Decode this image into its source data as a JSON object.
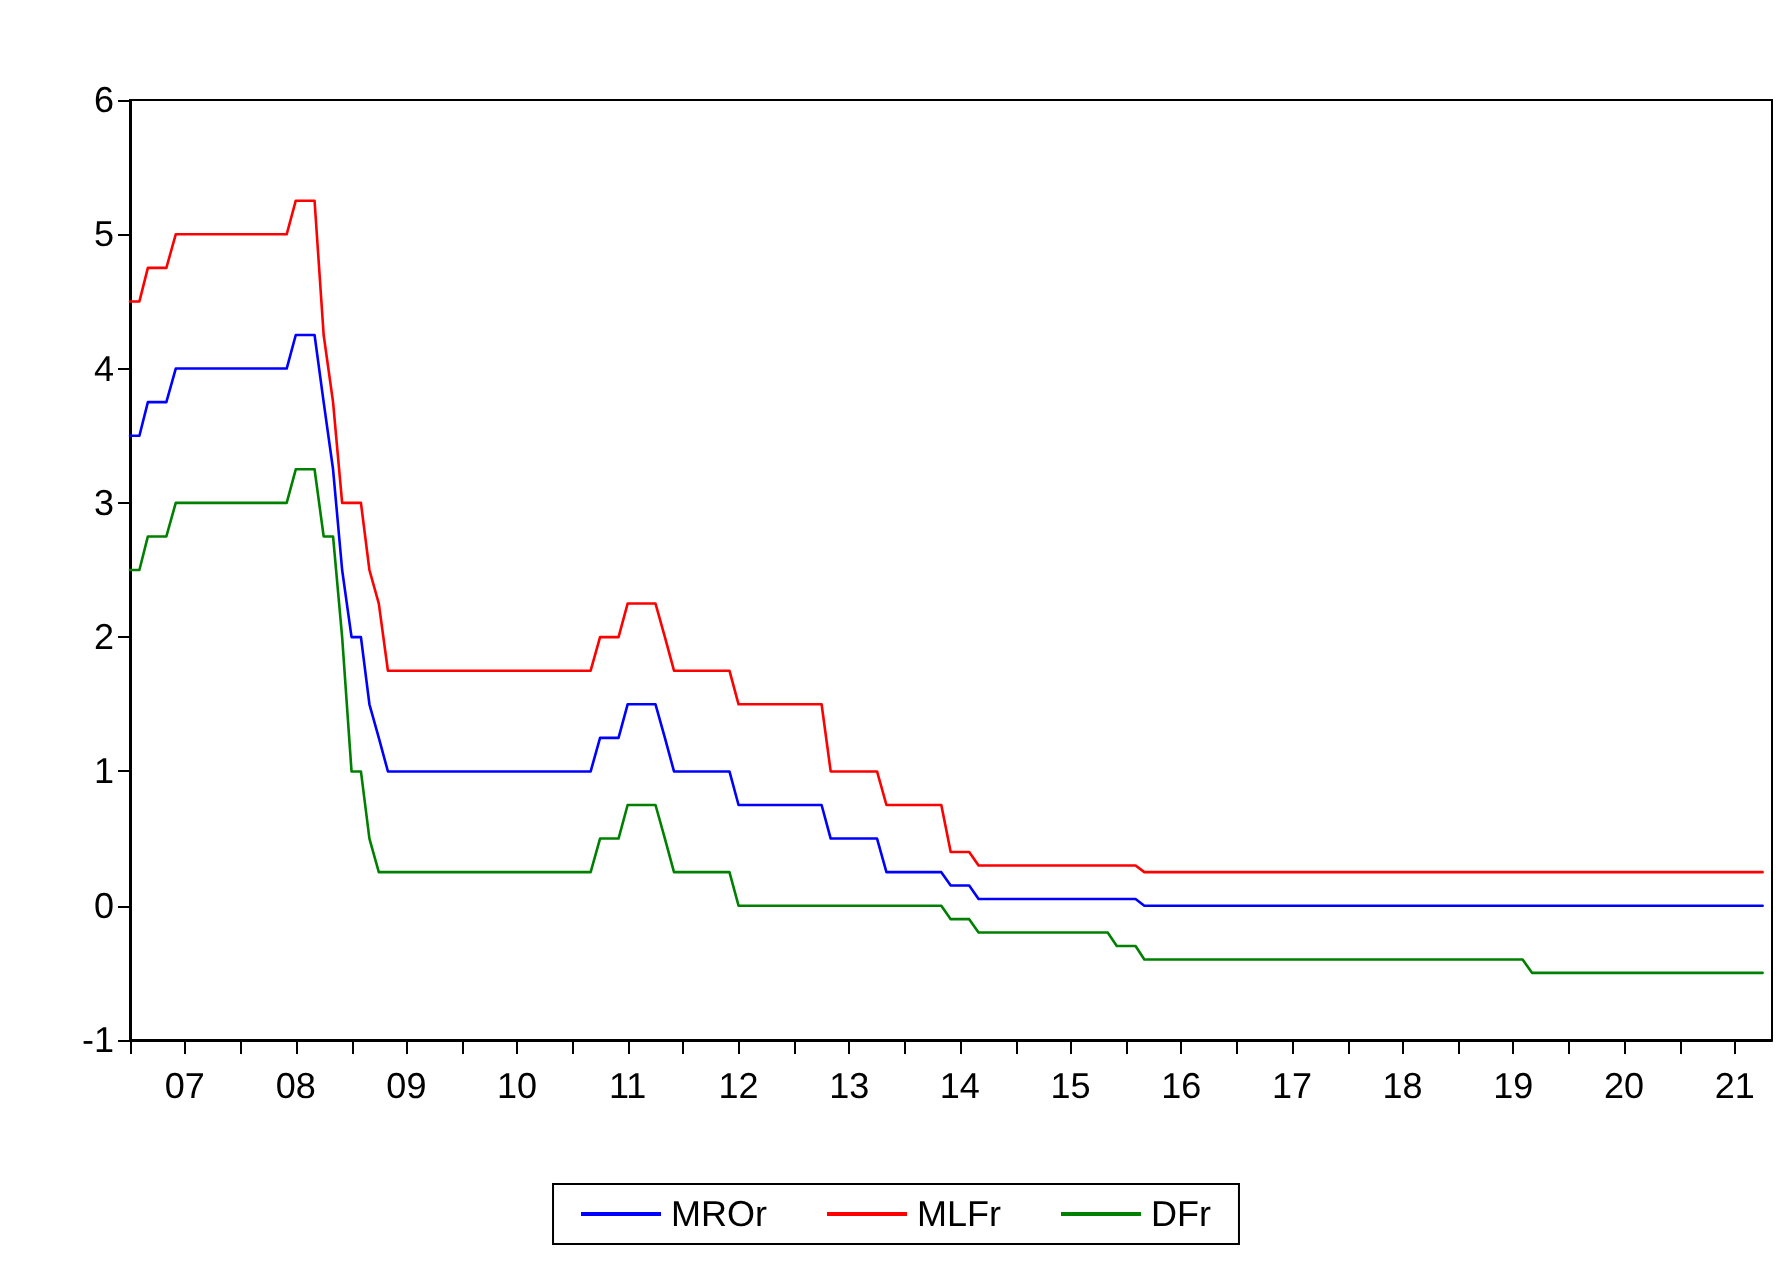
{
  "chart_data": {
    "type": "line",
    "x": [
      "2007-01",
      "2007-02",
      "2007-03",
      "2007-05",
      "2007-06",
      "2008-06",
      "2008-07",
      "2008-09",
      "2008-10",
      "2008-11",
      "2008-12",
      "2009-01",
      "2009-02",
      "2009-03",
      "2009-04",
      "2009-05",
      "2011-03",
      "2011-04",
      "2011-06",
      "2011-07",
      "2011-10",
      "2011-11",
      "2011-12",
      "2012-06",
      "2012-07",
      "2013-04",
      "2013-05",
      "2013-10",
      "2013-11",
      "2014-05",
      "2014-06",
      "2014-08",
      "2014-09",
      "2015-11",
      "2015-12",
      "2016-02",
      "2016-03",
      "2019-08",
      "2019-09",
      "2021-10"
    ],
    "series": [
      {
        "name": "MROr",
        "color": "#0000ff",
        "values": [
          3.5,
          3.5,
          3.75,
          3.75,
          4.0,
          4.0,
          4.25,
          4.25,
          3.75,
          3.25,
          2.5,
          2.0,
          2.0,
          1.5,
          1.25,
          1.0,
          1.0,
          1.25,
          1.25,
          1.5,
          1.5,
          1.25,
          1.0,
          1.0,
          0.75,
          0.75,
          0.5,
          0.5,
          0.25,
          0.25,
          0.15,
          0.15,
          0.05,
          0.05,
          0.05,
          0.05,
          0,
          0,
          0,
          0
        ]
      },
      {
        "name": "MLFr",
        "color": "#ff0000",
        "values": [
          4.5,
          4.5,
          4.75,
          4.75,
          5.0,
          5.0,
          5.25,
          5.25,
          4.25,
          3.75,
          3.0,
          3.0,
          3.0,
          2.5,
          2.25,
          1.75,
          1.75,
          2.0,
          2.0,
          2.25,
          2.25,
          2.0,
          1.75,
          1.75,
          1.5,
          1.5,
          1.0,
          1.0,
          0.75,
          0.75,
          0.4,
          0.4,
          0.3,
          0.3,
          0.3,
          0.3,
          0.25,
          0.25,
          0.25,
          0.25
        ]
      },
      {
        "name": "DFr",
        "color": "#008000",
        "values": [
          2.5,
          2.5,
          2.75,
          2.75,
          3.0,
          3.0,
          3.25,
          3.25,
          2.75,
          2.75,
          2.0,
          1.0,
          1.0,
          0.5,
          0.25,
          0.25,
          0.25,
          0.5,
          0.5,
          0.75,
          0.75,
          0.5,
          0.25,
          0.25,
          0,
          0,
          0,
          0,
          0,
          0,
          -0.1,
          -0.1,
          -0.2,
          -0.2,
          -0.3,
          -0.3,
          -0.4,
          -0.4,
          -0.5,
          -0.5
        ]
      }
    ],
    "xlim": [
      "2007-01",
      "2021-11"
    ],
    "xticks": [
      {
        "value": "2007-01",
        "label": null
      },
      {
        "value": "2007-07",
        "label": "07"
      },
      {
        "value": "2008-01",
        "label": null
      },
      {
        "value": "2008-07",
        "label": "08"
      },
      {
        "value": "2009-01",
        "label": null
      },
      {
        "value": "2009-07",
        "label": "09"
      },
      {
        "value": "2010-01",
        "label": null
      },
      {
        "value": "2010-07",
        "label": "10"
      },
      {
        "value": "2011-01",
        "label": null
      },
      {
        "value": "2011-07",
        "label": "11"
      },
      {
        "value": "2012-01",
        "label": null
      },
      {
        "value": "2012-07",
        "label": "12"
      },
      {
        "value": "2013-01",
        "label": null
      },
      {
        "value": "2013-07",
        "label": "13"
      },
      {
        "value": "2014-01",
        "label": null
      },
      {
        "value": "2014-07",
        "label": "14"
      },
      {
        "value": "2015-01",
        "label": null
      },
      {
        "value": "2015-07",
        "label": "15"
      },
      {
        "value": "2016-01",
        "label": null
      },
      {
        "value": "2016-07",
        "label": "16"
      },
      {
        "value": "2017-01",
        "label": null
      },
      {
        "value": "2017-07",
        "label": "17"
      },
      {
        "value": "2018-01",
        "label": null
      },
      {
        "value": "2018-07",
        "label": "18"
      },
      {
        "value": "2019-01",
        "label": null
      },
      {
        "value": "2019-07",
        "label": "19"
      },
      {
        "value": "2020-01",
        "label": null
      },
      {
        "value": "2020-07",
        "label": "20"
      },
      {
        "value": "2021-01",
        "label": null
      },
      {
        "value": "2021-07",
        "label": "21"
      }
    ],
    "ylim": [
      -1,
      6
    ],
    "yticks": [
      -1,
      0,
      1,
      2,
      3,
      4,
      5,
      6
    ],
    "grid": false,
    "legend": "bottom",
    "marker": "none",
    "line_style": "solid"
  }
}
